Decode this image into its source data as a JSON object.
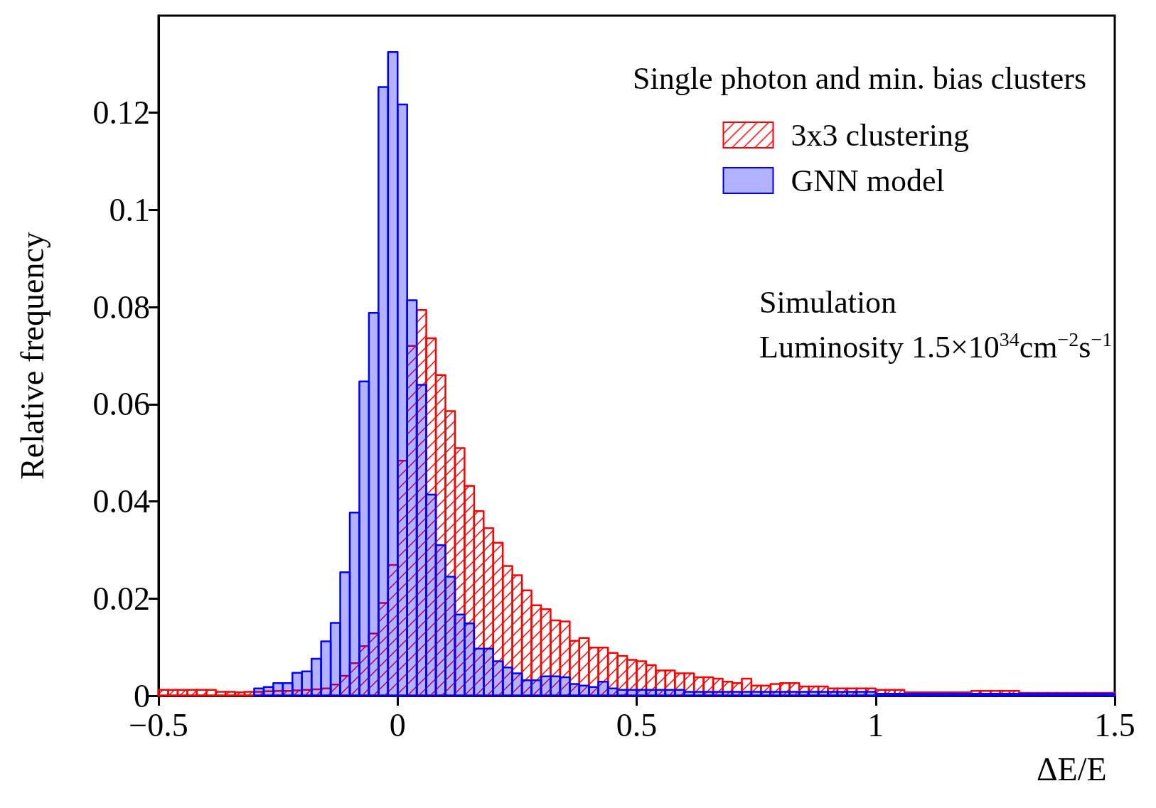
{
  "chart_data": {
    "type": "histogram",
    "xlabel": "ΔE/E",
    "ylabel": "Relative frequency",
    "legend_title": "Single photon and min. bias clusters",
    "annotations": [
      "Simulation",
      "Luminosity 1.5×10$^{34}$cm$^{−2}$s$^{−1}$"
    ],
    "bins": [
      -0.5,
      -0.48,
      -0.46,
      -0.44,
      -0.42,
      -0.4,
      -0.38,
      -0.36,
      -0.34,
      -0.32,
      -0.3,
      -0.28,
      -0.26,
      -0.24,
      -0.22,
      -0.2,
      -0.18,
      -0.16,
      -0.14,
      -0.12,
      -0.1,
      -0.08,
      -0.06,
      -0.04,
      -0.02,
      0,
      0.02,
      0.04,
      0.06,
      0.08,
      0.1,
      0.12,
      0.14,
      0.16,
      0.18,
      0.2,
      0.22,
      0.24,
      0.26,
      0.28,
      0.3,
      0.32,
      0.34,
      0.36,
      0.38,
      0.4,
      0.42,
      0.44,
      0.46,
      0.48,
      0.5,
      0.52,
      0.54,
      0.56,
      0.58,
      0.6,
      0.62,
      0.64,
      0.66,
      0.68,
      0.7,
      0.72,
      0.74,
      0.76,
      0.78,
      0.8,
      0.82,
      0.84,
      0.86,
      0.88,
      0.9,
      0.92,
      0.94,
      0.96,
      0.98,
      1,
      1.02,
      1.04,
      1.06,
      1.08,
      1.1,
      1.12,
      1.14,
      1.16,
      1.18,
      1.2,
      1.22,
      1.24,
      1.26,
      1.28,
      1.3,
      1.32,
      1.34,
      1.36,
      1.38,
      1.4,
      1.42,
      1.44,
      1.46,
      1.48,
      1.5
    ],
    "series": [
      {
        "name": "3x3 clustering",
        "color": "#ff0000",
        "values": [
          0.0012,
          0.0012,
          0.0012,
          0.0012,
          0.0012,
          0.0012,
          0.0008,
          0.0008,
          0.0007,
          0.0008,
          0.0008,
          0.0009,
          0.001,
          0.001,
          0.0011,
          0.0012,
          0.0013,
          0.0015,
          0.0023,
          0.0041,
          0.0067,
          0.0102,
          0.0128,
          0.0191,
          0.0269,
          0.0484,
          0.072,
          0.0794,
          0.0736,
          0.066,
          0.0586,
          0.051,
          0.0432,
          0.038,
          0.0345,
          0.0315,
          0.0267,
          0.0248,
          0.0217,
          0.0186,
          0.0178,
          0.0155,
          0.0153,
          0.0113,
          0.0119,
          0.0099,
          0.0099,
          0.0088,
          0.0082,
          0.0074,
          0.0071,
          0.0063,
          0.0052,
          0.0052,
          0.0046,
          0.0046,
          0.0038,
          0.0038,
          0.0035,
          0.0029,
          0.0026,
          0.0035,
          0.0021,
          0.0021,
          0.0024,
          0.0026,
          0.0026,
          0.0019,
          0.0019,
          0.0019,
          0.0015,
          0.0015,
          0.0015,
          0.0015,
          0.0015,
          0.0012,
          0.0012,
          0.0012,
          0.0007,
          0.0007,
          0.0007,
          0.0007,
          0.0007,
          0.0007,
          0.0007,
          0.001,
          0.001,
          0.001,
          0.001,
          0.001,
          0.0006,
          0.0006,
          0.0006,
          0.0006,
          0.0006,
          0.0006,
          0.0006,
          0.0006,
          0.0006,
          0.0006
        ]
      },
      {
        "name": "GNN model",
        "color": "#0000ff",
        "values": [
          null,
          null,
          null,
          null,
          null,
          null,
          null,
          null,
          null,
          null,
          0.0015,
          0.0018,
          0.0026,
          0.0026,
          0.0047,
          0.005,
          0.0076,
          0.0112,
          0.015,
          0.0254,
          0.0377,
          0.0647,
          0.0788,
          0.1253,
          0.1325,
          0.1217,
          0.0814,
          0.064,
          0.0414,
          0.031,
          0.0245,
          0.0167,
          0.0149,
          0.0097,
          0.0097,
          0.0071,
          0.0058,
          0.0046,
          0.0032,
          0.0032,
          0.004,
          0.004,
          0.0038,
          0.0024,
          0.0021,
          0.0018,
          0.0029,
          0.0015,
          0.0012,
          0.0012,
          0.0012,
          0.0012,
          0.0012,
          0.0012,
          0.0012,
          0.0008,
          0.0008,
          0.0008,
          0.0008,
          0.0008,
          0.0008,
          0.0008,
          0.0008,
          0.0008,
          0.0008,
          0.0008,
          0.0008,
          0.0008,
          0.0008,
          0.0008,
          0.0008,
          0.0008,
          0.0008,
          0.0008,
          0.0008,
          0.0004,
          0.0004,
          0.0004,
          0.0004,
          0.0004,
          0.0004,
          0.0004,
          0.0004,
          0.0004,
          0.0004,
          0.0004,
          0.0004,
          0.0004,
          0.0004,
          0.0004,
          0.0004,
          0.0004,
          0.0004,
          0.0004,
          0.0004,
          0.0004,
          0.0004,
          0.0004,
          0.0004,
          0.0004
        ]
      }
    ],
    "xlim": [
      -0.5,
      1.5
    ],
    "xticks": [
      {
        "value": -0.5,
        "label": "−0.5"
      },
      0,
      0.5,
      1,
      1.5
    ],
    "ylim": [
      0,
      0.14
    ],
    "yticks": [
      0,
      0.02,
      0.04,
      0.06,
      0.08,
      0.1,
      0.12
    ],
    "grid": false,
    "legend": "top right"
  }
}
